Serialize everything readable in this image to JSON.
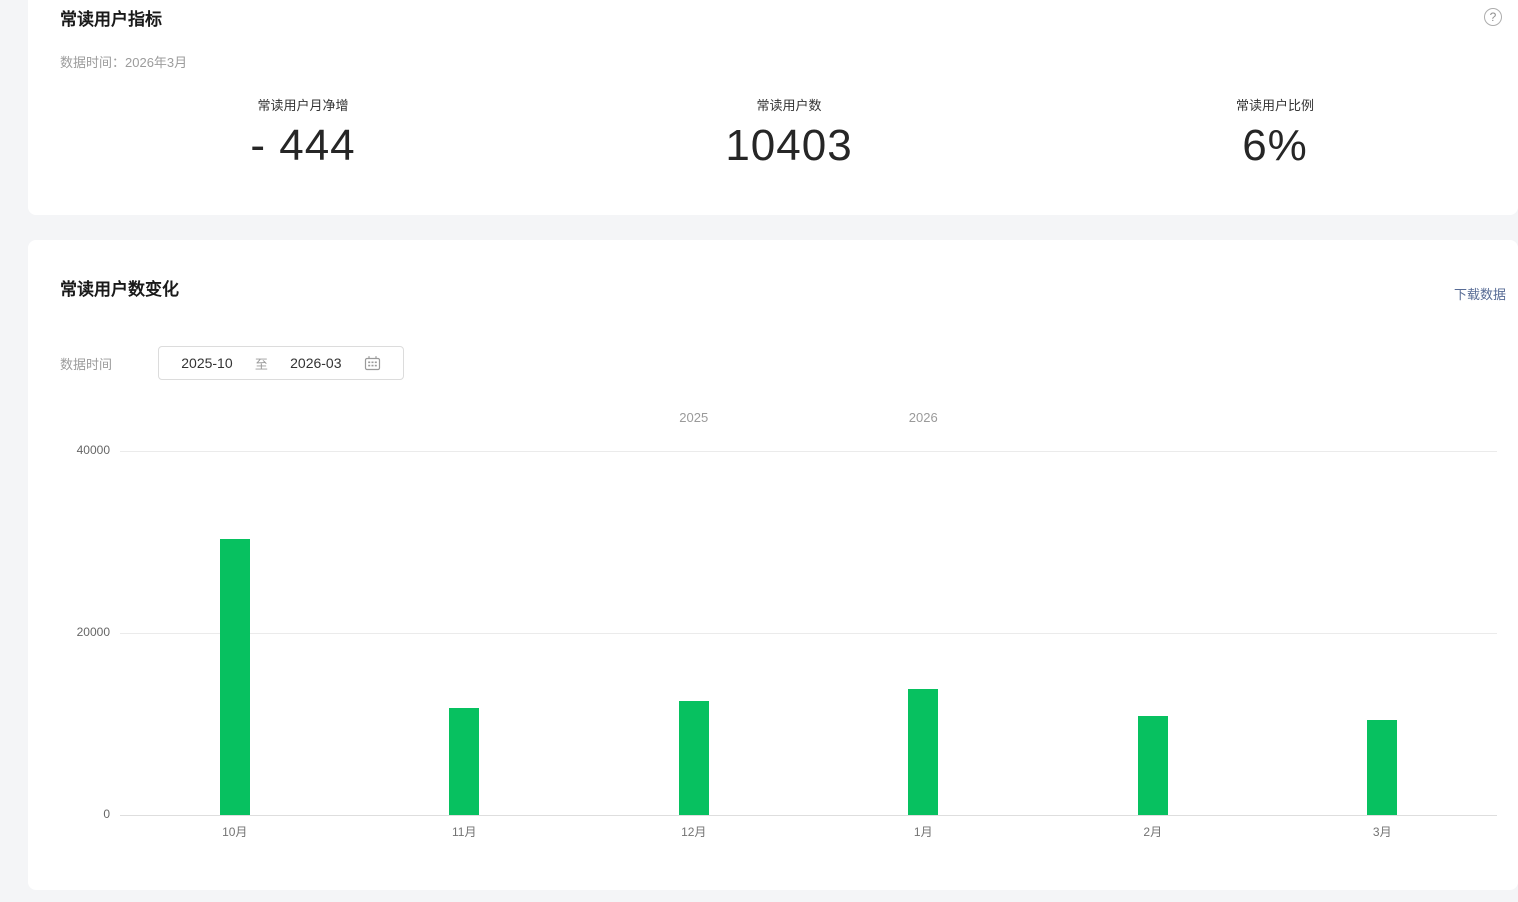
{
  "page": {
    "background_color": "#f4f5f7",
    "card_background_color": "#ffffff",
    "accent_green": "#07c160",
    "link_color": "#576b95"
  },
  "icons": {
    "help": "?"
  },
  "metrics_card": {
    "title": "常读用户指标",
    "data_time_label": "数据时间：",
    "data_time_value": "2026年3月",
    "metrics": [
      {
        "label": "常读用户月净增",
        "value": "- 444"
      },
      {
        "label": "常读用户数",
        "value": "10403"
      },
      {
        "label": "常读用户比例",
        "value": "6%"
      }
    ]
  },
  "chart_card": {
    "title": "常读用户数变化",
    "download_link_label": "下载数据",
    "data_time_label": "数据时间",
    "date_range": {
      "start": "2025-10",
      "separator": "至",
      "end": "2026-03"
    }
  },
  "chart_data": {
    "type": "bar",
    "title": "常读用户数变化",
    "categories": [
      "10月",
      "11月",
      "12月",
      "1月",
      "2月",
      "3月"
    ],
    "values": [
      30300,
      11800,
      12500,
      13900,
      10847,
      10403
    ],
    "year_labels": [
      {
        "text": "2025",
        "position_index": 2
      },
      {
        "text": "2026",
        "position_index": 3
      }
    ],
    "ylabel": "",
    "xlabel": "",
    "ylim": [
      0,
      40000
    ],
    "yticks": [
      0,
      20000,
      40000
    ],
    "bar_color": "#07c160",
    "grid": true,
    "legend_position": "none"
  }
}
